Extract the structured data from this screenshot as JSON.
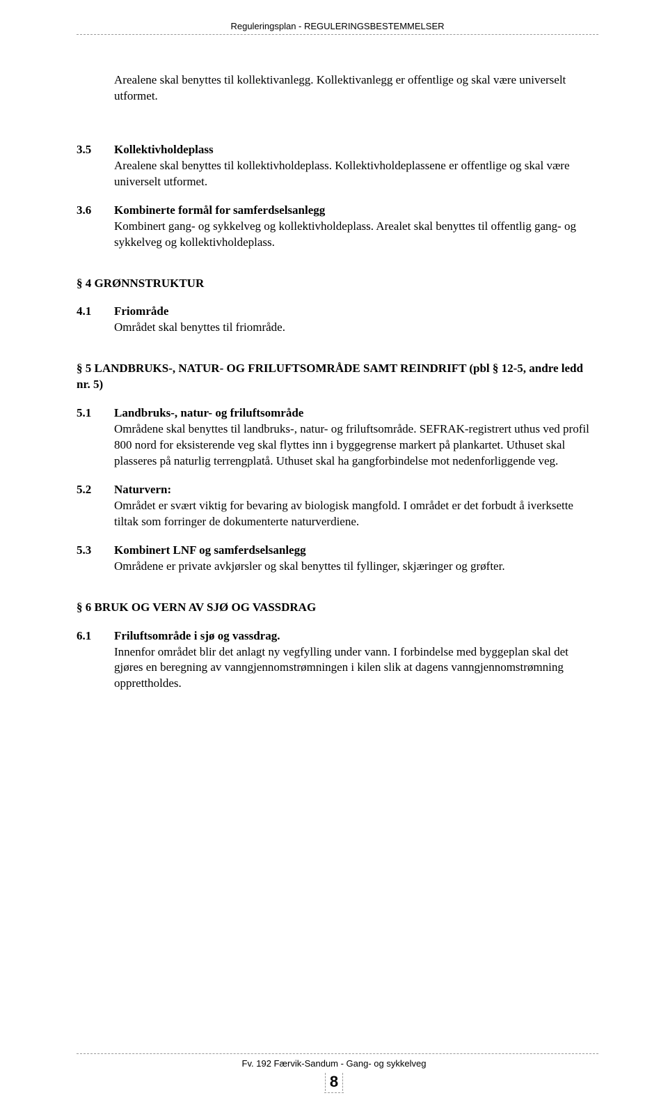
{
  "header": {
    "title": "Reguleringsplan - REGULERINGSBESTEMMELSER"
  },
  "body": {
    "intro": "Arealene skal benyttes til kollektivanlegg. Kollektivanlegg er offentlige og skal være universelt utformet.",
    "s3_5": {
      "num": "3.5",
      "title": "Kollektivholdeplass",
      "text": "Arealene skal benyttes til kollektivholdeplass. Kollektivholdeplassene er offentlige og skal være universelt utformet."
    },
    "s3_6": {
      "num": "3.6",
      "title": "Kombinerte formål for samferdselsanlegg",
      "text": "Kombinert gang- og sykkelveg og kollektivholdeplass. Arealet skal benyttes til offentlig gang- og sykkelveg og kollektivholdeplass."
    },
    "h4": "§ 4 GRØNNSTRUKTUR",
    "s4_1": {
      "num": "4.1",
      "title": "Friområde",
      "text": "Området skal benyttes til friområde."
    },
    "h5": "§ 5 LANDBRUKS-, NATUR- OG FRILUFTSOMRÅDE SAMT REINDRIFT (pbl § 12-5, andre ledd nr. 5)",
    "s5_1": {
      "num": "5.1",
      "title": "Landbruks-, natur- og friluftsområde",
      "text": "Områdene skal benyttes til landbruks-, natur- og friluftsområde. SEFRAK-registrert uthus ved profil 800 nord for eksisterende veg skal flyttes inn i byggegrense markert på plankartet. Uthuset skal plasseres på naturlig terrengplatå. Uthuset skal ha gangforbindelse mot nedenforliggende veg."
    },
    "s5_2": {
      "num": "5.2",
      "title": "Naturvern:",
      "text": "Området er svært viktig for bevaring av biologisk mangfold. I området er det forbudt å iverksette tiltak som forringer de dokumenterte naturverdiene."
    },
    "s5_3": {
      "num": "5.3",
      "title": "Kombinert LNF og samferdselsanlegg",
      "text": "Områdene er private avkjørsler og skal benyttes til fyllinger, skjæringer og grøfter."
    },
    "h6": "§ 6 BRUK OG VERN AV SJØ OG VASSDRAG",
    "s6_1": {
      "num": "6.1",
      "title": "Friluftsområde i sjø og vassdrag.",
      "text": "Innenfor området blir det anlagt ny vegfylling under vann. I forbindelse med byggeplan skal det gjøres en beregning av vanngjennomstrømningen i kilen slik at dagens vanngjennomstrømning opprettholdes."
    }
  },
  "footer": {
    "text": "Fv. 192 Færvik-Sandum - Gang- og sykkelveg",
    "page": "8"
  }
}
